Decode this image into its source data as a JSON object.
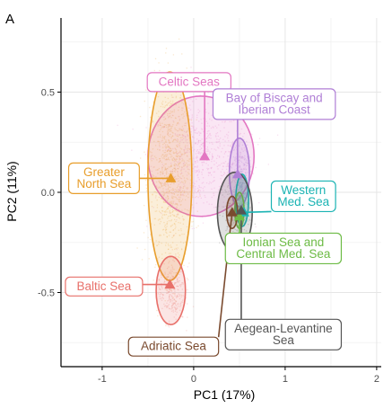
{
  "chart_data": {
    "type": "scatter",
    "panel_label": "A",
    "xlabel": "PC1 (17%)",
    "ylabel": "PC2 (11%)",
    "xlim": [
      -1.45,
      2.05
    ],
    "ylim": [
      -0.87,
      0.87
    ],
    "xticks": [
      -1,
      0,
      1,
      2
    ],
    "yticks": [
      -0.5,
      0.0,
      0.5
    ],
    "xtick_labels": [
      "-1",
      "0",
      "1",
      "2"
    ],
    "ytick_labels": [
      "-0.5",
      "0.0",
      "0.5"
    ],
    "grid": true,
    "legend": "none (direct labels)",
    "series": [
      {
        "name": "Celtic Seas",
        "label_lines": [
          "Celtic Seas"
        ],
        "color": "#e377c2",
        "centroid": [
          0.12,
          0.18
        ],
        "ellipse": {
          "cx": 0.08,
          "cy": 0.18,
          "rx": 0.58,
          "ry": 0.3,
          "angle_deg": 0
        },
        "label_pos": [
          -0.05,
          0.55
        ]
      },
      {
        "name": "Bay of Biscay and Iberian Coast",
        "label_lines": [
          "Bay of Biscay and",
          "Iberian Coast"
        ],
        "color": "#b07fd6",
        "centroid": [
          0.48,
          0.09
        ],
        "ellipse": {
          "cx": 0.5,
          "cy": 0.1,
          "rx": 0.11,
          "ry": 0.17,
          "angle_deg": 0
        },
        "label_pos": [
          0.88,
          0.44
        ]
      },
      {
        "name": "Greater North Sea",
        "label_lines": [
          "Greater",
          "North Sea"
        ],
        "color": "#e89e2c",
        "centroid": [
          -0.25,
          0.07
        ],
        "ellipse": {
          "cx": -0.26,
          "cy": 0.08,
          "rx": 0.24,
          "ry": 0.52,
          "angle_deg": 0
        },
        "label_pos": [
          -0.98,
          0.07
        ]
      },
      {
        "name": "Western Med. Sea",
        "label_lines": [
          "Western",
          "Med. Sea"
        ],
        "color": "#1ab3b3",
        "centroid": [
          0.55,
          -0.1
        ],
        "ellipse": {
          "cx": 0.53,
          "cy": -0.04,
          "rx": 0.07,
          "ry": 0.13,
          "angle_deg": 0
        },
        "label_pos": [
          1.2,
          -0.02
        ]
      },
      {
        "name": "Ionian Sea and Central Med. Sea",
        "label_lines": [
          "Ionian Sea and",
          "Central Med. Sea"
        ],
        "color": "#6dbb45",
        "centroid": [
          0.5,
          -0.12
        ],
        "ellipse": {
          "cx": 0.5,
          "cy": -0.09,
          "rx": 0.05,
          "ry": 0.09,
          "angle_deg": 0
        },
        "label_pos": [
          0.98,
          -0.28
        ]
      },
      {
        "name": "Aegean-Levantine Sea",
        "label_lines": [
          "Aegean-Levantine",
          "Sea"
        ],
        "color": "#555555",
        "centroid": [
          0.52,
          -0.09
        ],
        "ellipse": {
          "cx": 0.45,
          "cy": -0.1,
          "rx": 0.19,
          "ry": 0.2,
          "angle_deg": 0
        },
        "label_pos": [
          0.98,
          -0.71
        ]
      },
      {
        "name": "Adriatic Sea",
        "label_lines": [
          "Adriatic Sea"
        ],
        "color": "#7a4a2e",
        "centroid": [
          0.42,
          -0.1
        ],
        "ellipse": {
          "cx": 0.42,
          "cy": -0.1,
          "rx": 0.06,
          "ry": 0.08,
          "angle_deg": 0
        },
        "label_pos": [
          -0.22,
          -0.77
        ]
      },
      {
        "name": "Baltic Sea",
        "label_lines": [
          "Baltic Sea"
        ],
        "color": "#e8706a",
        "centroid": [
          -0.26,
          -0.46
        ],
        "ellipse": {
          "cx": -0.25,
          "cy": -0.49,
          "rx": 0.16,
          "ry": 0.17,
          "angle_deg": 0
        },
        "label_pos": [
          -0.98,
          -0.47
        ]
      }
    ]
  }
}
